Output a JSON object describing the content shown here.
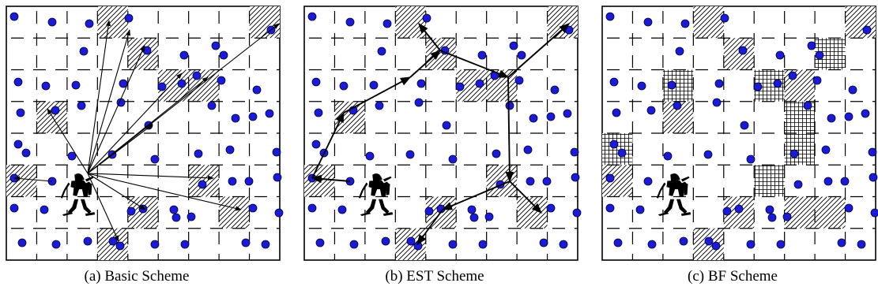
{
  "captions": {
    "a": "(a) Basic Scheme",
    "b": "(b) EST Scheme",
    "c": "(c) BF Scheme"
  },
  "colors": {
    "node_fill": "#1a1ad8",
    "node_stroke": "#000033",
    "frame": "#000000",
    "grid_dash": "#000000",
    "hatch": "#000000"
  },
  "icons": {
    "node": "sensor-node-dot",
    "soldier": "soldier-silhouette-icon",
    "arrow": "arrow-icon"
  }
}
